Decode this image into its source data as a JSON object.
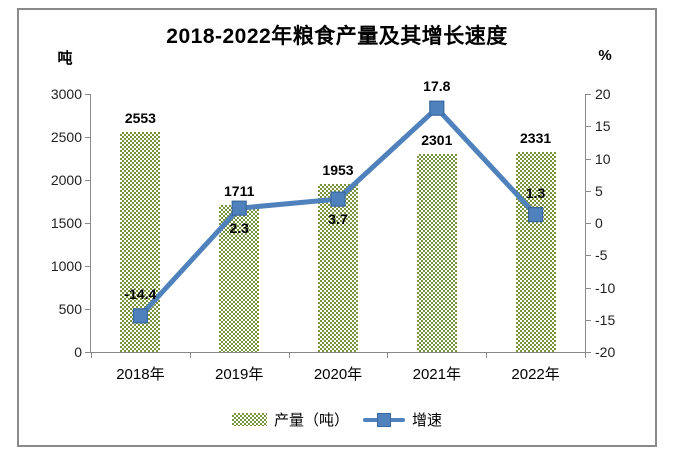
{
  "frame": {
    "border_color": "#8a8a8a",
    "background": "#ffffff"
  },
  "chart_data": {
    "type": "combo",
    "title": "2018-2022年粮食产量及其增长速度",
    "categories": [
      "2018年",
      "2019年",
      "2020年",
      "2021年",
      "2022年"
    ],
    "series": [
      {
        "name": "产量（吨）",
        "type": "bar",
        "axis": "left",
        "values": [
          2553,
          1711,
          1953,
          2301,
          2331
        ],
        "color": "#77933C",
        "fill_pattern": "checkerboard"
      },
      {
        "name": "增速",
        "type": "line",
        "axis": "right",
        "values": [
          -14.4,
          2.3,
          3.7,
          17.8,
          1.3
        ],
        "color": "#4F81BD",
        "marker": "square",
        "marker_fill": "#4F81BD",
        "marker_border": "#39679E",
        "label_positions": [
          "above",
          "below",
          "below",
          "above",
          "above"
        ]
      }
    ],
    "left_axis": {
      "unit_label": "吨",
      "min": 0,
      "max": 3000,
      "step": 500,
      "ticks": [
        "3000",
        "2500",
        "2000",
        "1500",
        "1000",
        "500",
        "0"
      ]
    },
    "right_axis": {
      "unit_label": "%",
      "min": -20,
      "max": 20,
      "step": 5,
      "ticks": [
        "20",
        "15",
        "10",
        "5",
        "0",
        "-5",
        "-10",
        "-15",
        "-20"
      ]
    },
    "legend": {
      "position": "bottom",
      "items": [
        {
          "label": "产量（吨）",
          "swatch": "bar-pattern"
        },
        {
          "label": "增速",
          "swatch": "line-marker"
        }
      ]
    },
    "grid": false,
    "axis_color": "#898989",
    "text_color": "#1f1f1f"
  }
}
